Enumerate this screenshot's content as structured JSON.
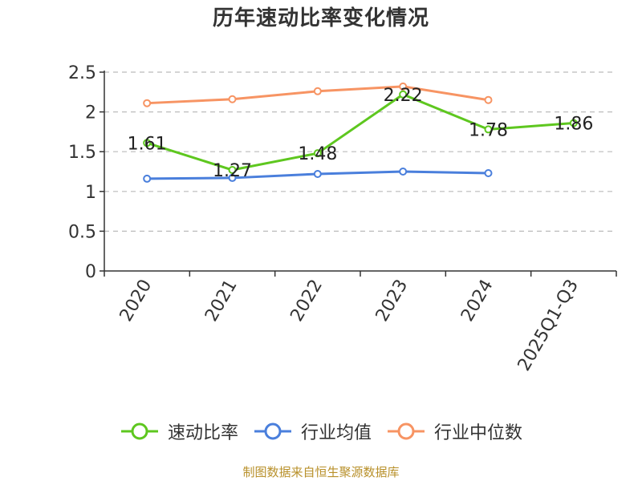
{
  "title": "历年速动比率变化情况",
  "source": "制图数据来自恒生聚源数据库",
  "colors": {
    "quick_ratio": "#5ec71f",
    "industry_avg": "#4a7fdc",
    "industry_median": "#f79463",
    "grid": "#bbbbbb",
    "axis": "#333333",
    "text": "#333333"
  },
  "chart_data": {
    "type": "line",
    "title": "历年速动比率变化情况",
    "categories": [
      "2020",
      "2021",
      "2022",
      "2023",
      "2024",
      "2025Q1-Q3"
    ],
    "ylim": [
      0,
      2.5
    ],
    "yticks": [
      "0",
      "0.5",
      "1",
      "1.5",
      "2",
      "2.5"
    ],
    "grid": true,
    "legend_position": "bottom",
    "series": [
      {
        "name": "速动比率",
        "color_key": "quick_ratio",
        "values": [
          1.61,
          1.27,
          1.48,
          2.22,
          1.78,
          1.86
        ],
        "data_labels": [
          "1.61",
          "1.27",
          "1.48",
          "2.22",
          "1.78",
          "1.86"
        ]
      },
      {
        "name": "行业均值",
        "color_key": "industry_avg",
        "values": [
          1.16,
          1.17,
          1.22,
          1.25,
          1.23,
          null
        ]
      },
      {
        "name": "行业中位数",
        "color_key": "industry_median",
        "values": [
          2.11,
          2.16,
          2.26,
          2.32,
          2.15,
          null
        ]
      }
    ]
  }
}
